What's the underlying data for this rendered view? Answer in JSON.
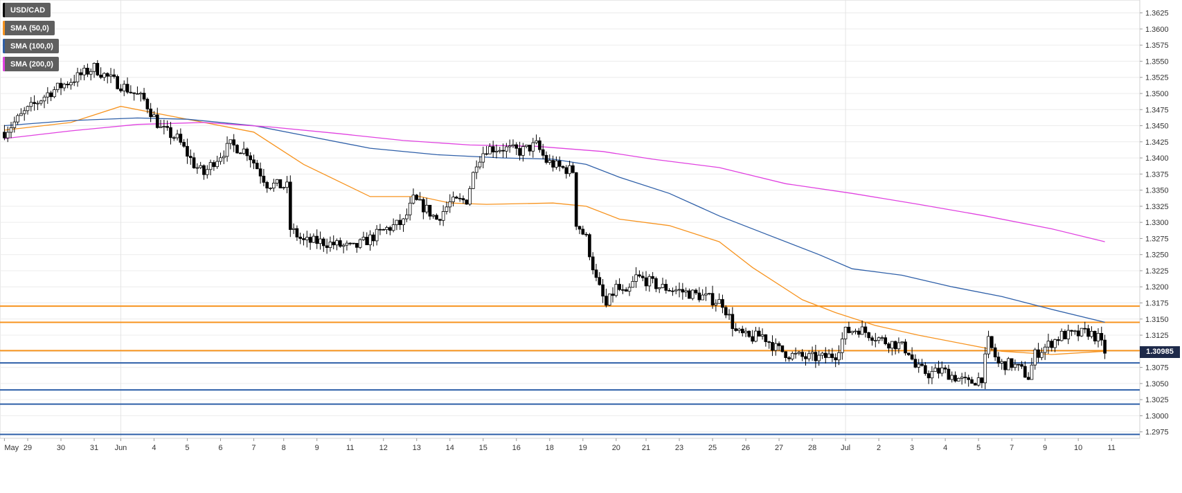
{
  "chart_data": {
    "type": "candlestick",
    "symbol": "USD/CAD",
    "legend_placement": "top-left",
    "grid": true,
    "y_axis": {
      "position": "right",
      "range": [
        1.2965,
        1.3645
      ],
      "ticks": [
        "1.2975",
        "1.3000",
        "1.3025",
        "1.3050",
        "1.3075",
        "1.3100",
        "1.3125",
        "1.3150",
        "1.3175",
        "1.3200",
        "1.3225",
        "1.3250",
        "1.3275",
        "1.3300",
        "1.3325",
        "1.3350",
        "1.3375",
        "1.3400",
        "1.3425",
        "1.3450",
        "1.3475",
        "1.3500",
        "1.3525",
        "1.3550",
        "1.3575",
        "1.3600",
        "1.3625"
      ]
    },
    "x_axis": {
      "ticks": [
        {
          "label": "May",
          "index": 0
        },
        {
          "label": "29",
          "index": 7
        },
        {
          "label": "30",
          "index": 17
        },
        {
          "label": "31",
          "index": 27
        },
        {
          "label": "Jun",
          "index": 35
        },
        {
          "label": "4",
          "index": 45
        },
        {
          "label": "5",
          "index": 55
        },
        {
          "label": "6",
          "index": 65
        },
        {
          "label": "7",
          "index": 75
        },
        {
          "label": "8",
          "index": 84
        },
        {
          "label": "9",
          "index": 94
        },
        {
          "label": "11",
          "index": 104
        },
        {
          "label": "12",
          "index": 114
        },
        {
          "label": "13",
          "index": 124
        },
        {
          "label": "14",
          "index": 134
        },
        {
          "label": "15",
          "index": 144
        },
        {
          "label": "16",
          "index": 154
        },
        {
          "label": "18",
          "index": 164
        },
        {
          "label": "19",
          "index": 174
        },
        {
          "label": "20",
          "index": 184
        },
        {
          "label": "21",
          "index": 193
        },
        {
          "label": "23",
          "index": 203
        },
        {
          "label": "25",
          "index": 213
        },
        {
          "label": "26",
          "index": 223
        },
        {
          "label": "27",
          "index": 233
        },
        {
          "label": "28",
          "index": 243
        },
        {
          "label": "Jul",
          "index": 253
        },
        {
          "label": "2",
          "index": 263
        },
        {
          "label": "3",
          "index": 273
        },
        {
          "label": "4",
          "index": 283
        },
        {
          "label": "5",
          "index": 293
        },
        {
          "label": "7",
          "index": 303
        },
        {
          "label": "9",
          "index": 313
        },
        {
          "label": "10",
          "index": 323
        },
        {
          "label": "11",
          "index": 333
        }
      ],
      "gridlines_at": [
        35,
        253
      ],
      "count": 342
    },
    "series": [
      {
        "name": "USD/CAD",
        "color": "#000000",
        "ohlc_anchors": [
          [
            0,
            1.344
          ],
          [
            6,
            1.347
          ],
          [
            13,
            1.35
          ],
          [
            20,
            1.352
          ],
          [
            27,
            1.354
          ],
          [
            31,
            1.3525
          ],
          [
            36,
            1.351
          ],
          [
            42,
            1.349
          ],
          [
            47,
            1.3445
          ],
          [
            52,
            1.343
          ],
          [
            57,
            1.339
          ],
          [
            60,
            1.3375
          ],
          [
            63,
            1.3395
          ],
          [
            68,
            1.342
          ],
          [
            73,
            1.341
          ],
          [
            76,
            1.3385
          ],
          [
            79,
            1.336
          ],
          [
            85,
            1.3355
          ],
          [
            86,
            1.329
          ],
          [
            90,
            1.327
          ],
          [
            95,
            1.327
          ],
          [
            100,
            1.3265
          ],
          [
            105,
            1.326
          ],
          [
            110,
            1.3275
          ],
          [
            115,
            1.329
          ],
          [
            120,
            1.33
          ],
          [
            123,
            1.3335
          ],
          [
            127,
            1.332
          ],
          [
            130,
            1.3305
          ],
          [
            134,
            1.333
          ],
          [
            139,
            1.3335
          ],
          [
            142,
            1.3395
          ],
          [
            145,
            1.3415
          ],
          [
            150,
            1.3415
          ],
          [
            155,
            1.341
          ],
          [
            160,
            1.342
          ],
          [
            163,
            1.3395
          ],
          [
            167,
            1.3385
          ],
          [
            171,
            1.338
          ],
          [
            172,
            1.33
          ],
          [
            175,
            1.3275
          ],
          [
            178,
            1.321
          ],
          [
            181,
            1.317
          ],
          [
            184,
            1.32
          ],
          [
            187,
            1.3185
          ],
          [
            190,
            1.3215
          ],
          [
            193,
            1.321
          ],
          [
            197,
            1.32
          ],
          [
            202,
            1.3195
          ],
          [
            206,
            1.319
          ],
          [
            210,
            1.3185
          ],
          [
            213,
            1.318
          ],
          [
            216,
            1.3175
          ],
          [
            220,
            1.313
          ],
          [
            224,
            1.312
          ],
          [
            228,
            1.3125
          ],
          [
            232,
            1.3105
          ],
          [
            236,
            1.3095
          ],
          [
            241,
            1.309
          ],
          [
            246,
            1.309
          ],
          [
            250,
            1.3095
          ],
          [
            253,
            1.313
          ],
          [
            257,
            1.3135
          ],
          [
            261,
            1.3125
          ],
          [
            265,
            1.3115
          ],
          [
            269,
            1.311
          ],
          [
            272,
            1.31
          ],
          [
            274,
            1.3075
          ],
          [
            278,
            1.3065
          ],
          [
            282,
            1.307
          ],
          [
            286,
            1.306
          ],
          [
            290,
            1.305
          ],
          [
            294,
            1.306
          ],
          [
            296,
            1.3115
          ],
          [
            299,
            1.308
          ],
          [
            303,
            1.308
          ],
          [
            306,
            1.307
          ],
          [
            308,
            1.306
          ],
          [
            310,
            1.3095
          ],
          [
            314,
            1.311
          ],
          [
            318,
            1.3125
          ],
          [
            322,
            1.3125
          ],
          [
            326,
            1.313
          ],
          [
            329,
            1.312
          ],
          [
            331,
            1.31
          ]
        ]
      },
      {
        "name": "SMA (50,0)",
        "color": "#f7931e",
        "values": [
          [
            0,
            1.3443
          ],
          [
            20,
            1.3455
          ],
          [
            35,
            1.348
          ],
          [
            50,
            1.3465
          ],
          [
            60,
            1.3455
          ],
          [
            75,
            1.344
          ],
          [
            90,
            1.339
          ],
          [
            110,
            1.334
          ],
          [
            125,
            1.334
          ],
          [
            134,
            1.333
          ],
          [
            145,
            1.3328
          ],
          [
            165,
            1.333
          ],
          [
            175,
            1.3325
          ],
          [
            185,
            1.3305
          ],
          [
            200,
            1.3295
          ],
          [
            215,
            1.327
          ],
          [
            225,
            1.323
          ],
          [
            240,
            1.318
          ],
          [
            250,
            1.316
          ],
          [
            262,
            1.314
          ],
          [
            275,
            1.3125
          ],
          [
            290,
            1.311
          ],
          [
            300,
            1.31
          ],
          [
            315,
            1.3095
          ],
          [
            331,
            1.31
          ]
        ]
      },
      {
        "name": "SMA (100,0)",
        "color": "#2e5fa8",
        "values": [
          [
            0,
            1.345
          ],
          [
            20,
            1.3458
          ],
          [
            40,
            1.3462
          ],
          [
            55,
            1.346
          ],
          [
            75,
            1.345
          ],
          [
            90,
            1.3435
          ],
          [
            110,
            1.3415
          ],
          [
            130,
            1.3405
          ],
          [
            150,
            1.34
          ],
          [
            165,
            1.3398
          ],
          [
            175,
            1.339
          ],
          [
            185,
            1.337
          ],
          [
            200,
            1.3345
          ],
          [
            215,
            1.331
          ],
          [
            230,
            1.328
          ],
          [
            245,
            1.325
          ],
          [
            255,
            1.3228
          ],
          [
            270,
            1.3218
          ],
          [
            285,
            1.32
          ],
          [
            300,
            1.3185
          ],
          [
            315,
            1.3165
          ],
          [
            331,
            1.3145
          ]
        ]
      },
      {
        "name": "SMA (200,0)",
        "color": "#e041e0",
        "values": [
          [
            0,
            1.343
          ],
          [
            20,
            1.3442
          ],
          [
            40,
            1.3452
          ],
          [
            60,
            1.3455
          ],
          [
            80,
            1.3448
          ],
          [
            100,
            1.3438
          ],
          [
            120,
            1.3427
          ],
          [
            140,
            1.342
          ],
          [
            160,
            1.3418
          ],
          [
            180,
            1.341
          ],
          [
            195,
            1.3398
          ],
          [
            215,
            1.3385
          ],
          [
            235,
            1.336
          ],
          [
            255,
            1.3345
          ],
          [
            275,
            1.3328
          ],
          [
            295,
            1.331
          ],
          [
            315,
            1.329
          ],
          [
            331,
            1.327
          ]
        ]
      }
    ],
    "horizontal_lines": [
      {
        "value": 1.317,
        "color": "#f7931e"
      },
      {
        "value": 1.3145,
        "color": "#f7931e"
      },
      {
        "value": 1.3101,
        "color": "#f7931e"
      },
      {
        "value": 1.3082,
        "color": "#2e5fa8"
      },
      {
        "value": 1.304,
        "color": "#2e5fa8"
      },
      {
        "value": 1.3018,
        "color": "#2e5fa8"
      },
      {
        "value": 1.2971,
        "color": "#2e5fa8"
      }
    ],
    "current_price": {
      "label": "1.30985",
      "value": 1.30985
    }
  },
  "legend": [
    {
      "label": "USD/CAD",
      "color": "#000000"
    },
    {
      "label": "SMA (50,0)",
      "color": "#f7931e"
    },
    {
      "label": "SMA (100,0)",
      "color": "#2e5fa8"
    },
    {
      "label": "SMA (200,0)",
      "color": "#e041e0"
    }
  ]
}
